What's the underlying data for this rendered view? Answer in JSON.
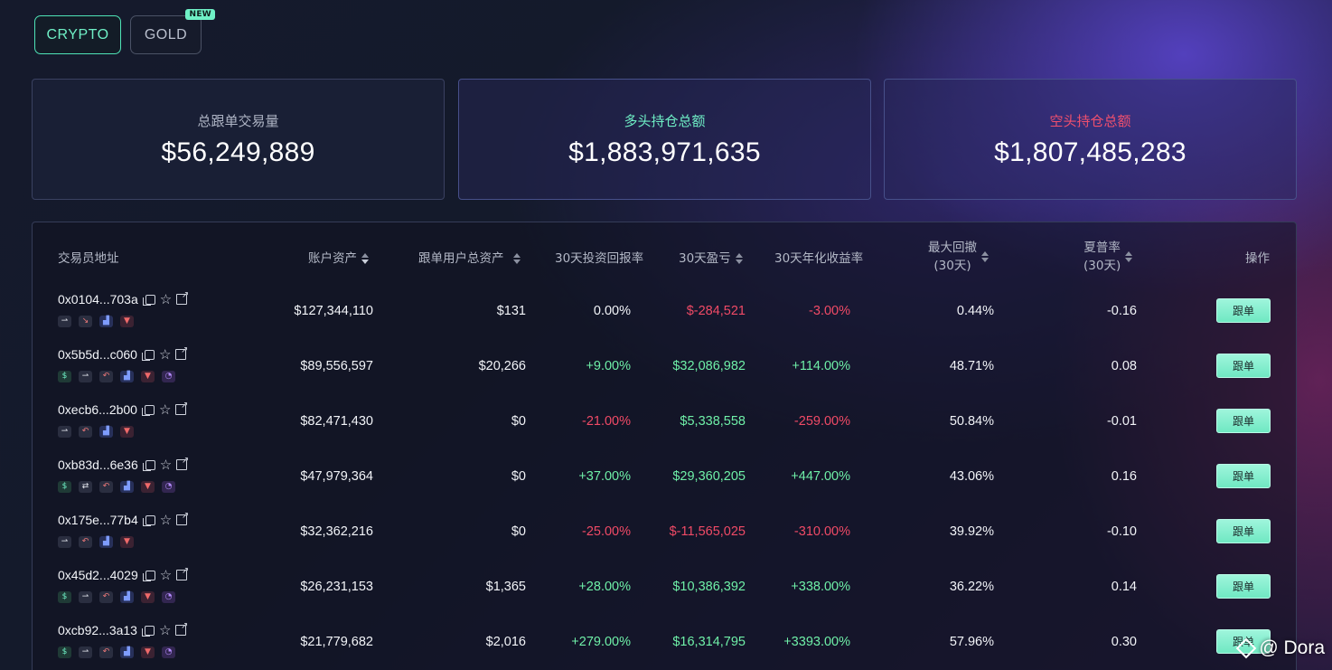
{
  "tabs": [
    {
      "label": "CRYPTO",
      "active": true
    },
    {
      "label": "GOLD",
      "badge": "NEW",
      "active": false
    }
  ],
  "stats": [
    {
      "label": "总跟单交易量",
      "value": "$56,249,889"
    },
    {
      "label": "多头持仓总额",
      "value": "$1,883,971,635"
    },
    {
      "label": "空头持仓总额",
      "value": "$1,807,485,283"
    }
  ],
  "table": {
    "headers": {
      "address": "交易员地址",
      "account_assets": "账户资产",
      "follower_assets": "跟单用户总资产",
      "roi_30d": "30天投资回报率",
      "pnl_30d": "30天盈亏",
      "apr_30d": "30天年化收益率",
      "max_drawdown": "最大回撤",
      "max_drawdown_sub": "(30天)",
      "sharpe": "夏普率",
      "sharpe_sub": "(30天)",
      "action": "操作"
    },
    "follow_label": "跟单",
    "rows": [
      {
        "address": "0x0104...703a",
        "tags": [
          "arrow-right-icon",
          "arrow-down-icon",
          "chart-icon",
          "funnel-icon"
        ],
        "account_assets": "$127,344,110",
        "follower_assets": "$131",
        "roi": "0.00%",
        "pnl": "$-284,521",
        "apr": "-3.00%",
        "mdd": "0.44%",
        "sharpe": "-0.16",
        "pnl_sign": "neg",
        "apr_sign": "neg",
        "roi_sign": "zero"
      },
      {
        "address": "0x5b5d...c060",
        "tags": [
          "money-bag-icon",
          "arrow-right-icon",
          "undo-icon",
          "chart-icon",
          "funnel-icon",
          "timer-icon"
        ],
        "account_assets": "$89,556,597",
        "follower_assets": "$20,266",
        "roi": "+9.00%",
        "pnl": "$32,086,982",
        "apr": "+114.00%",
        "mdd": "48.71%",
        "sharpe": "0.08",
        "pnl_sign": "pos",
        "apr_sign": "pos",
        "roi_sign": "pos"
      },
      {
        "address": "0xecb6...2b00",
        "tags": [
          "arrow-right-icon",
          "undo-icon",
          "chart-icon",
          "funnel-icon"
        ],
        "account_assets": "$82,471,430",
        "follower_assets": "$0",
        "roi": "-21.00%",
        "pnl": "$5,338,558",
        "apr": "-259.00%",
        "mdd": "50.84%",
        "sharpe": "-0.01",
        "pnl_sign": "pos",
        "apr_sign": "neg",
        "roi_sign": "neg"
      },
      {
        "address": "0xb83d...6e36",
        "tags": [
          "money-bag-icon",
          "swap-icon",
          "undo-icon",
          "chart-icon",
          "funnel-icon",
          "timer-icon"
        ],
        "account_assets": "$47,979,364",
        "follower_assets": "$0",
        "roi": "+37.00%",
        "pnl": "$29,360,205",
        "apr": "+447.00%",
        "mdd": "43.06%",
        "sharpe": "0.16",
        "pnl_sign": "pos",
        "apr_sign": "pos",
        "roi_sign": "pos"
      },
      {
        "address": "0x175e...77b4",
        "tags": [
          "arrow-right-icon",
          "undo-icon",
          "chart-icon",
          "funnel-icon"
        ],
        "account_assets": "$32,362,216",
        "follower_assets": "$0",
        "roi": "-25.00%",
        "pnl": "$-11,565,025",
        "apr": "-310.00%",
        "mdd": "39.92%",
        "sharpe": "-0.10",
        "pnl_sign": "neg",
        "apr_sign": "neg",
        "roi_sign": "neg"
      },
      {
        "address": "0x45d2...4029",
        "tags": [
          "money-bag-icon",
          "arrow-right-icon",
          "undo-icon",
          "chart-icon",
          "funnel-icon",
          "timer-icon"
        ],
        "account_assets": "$26,231,153",
        "follower_assets": "$1,365",
        "roi": "+28.00%",
        "pnl": "$10,386,392",
        "apr": "+338.00%",
        "mdd": "36.22%",
        "sharpe": "0.14",
        "pnl_sign": "pos",
        "apr_sign": "pos",
        "roi_sign": "pos"
      },
      {
        "address": "0xcb92...3a13",
        "tags": [
          "money-bag-icon",
          "arrow-right-icon",
          "undo-icon",
          "chart-icon",
          "funnel-icon",
          "timer-icon"
        ],
        "account_assets": "$21,779,682",
        "follower_assets": "$2,016",
        "roi": "+279.00%",
        "pnl": "$16,314,795",
        "apr": "+3393.00%",
        "mdd": "57.96%",
        "sharpe": "0.30",
        "pnl_sign": "pos",
        "apr_sign": "pos",
        "roi_sign": "pos"
      }
    ]
  },
  "watermark": "@ Dora"
}
